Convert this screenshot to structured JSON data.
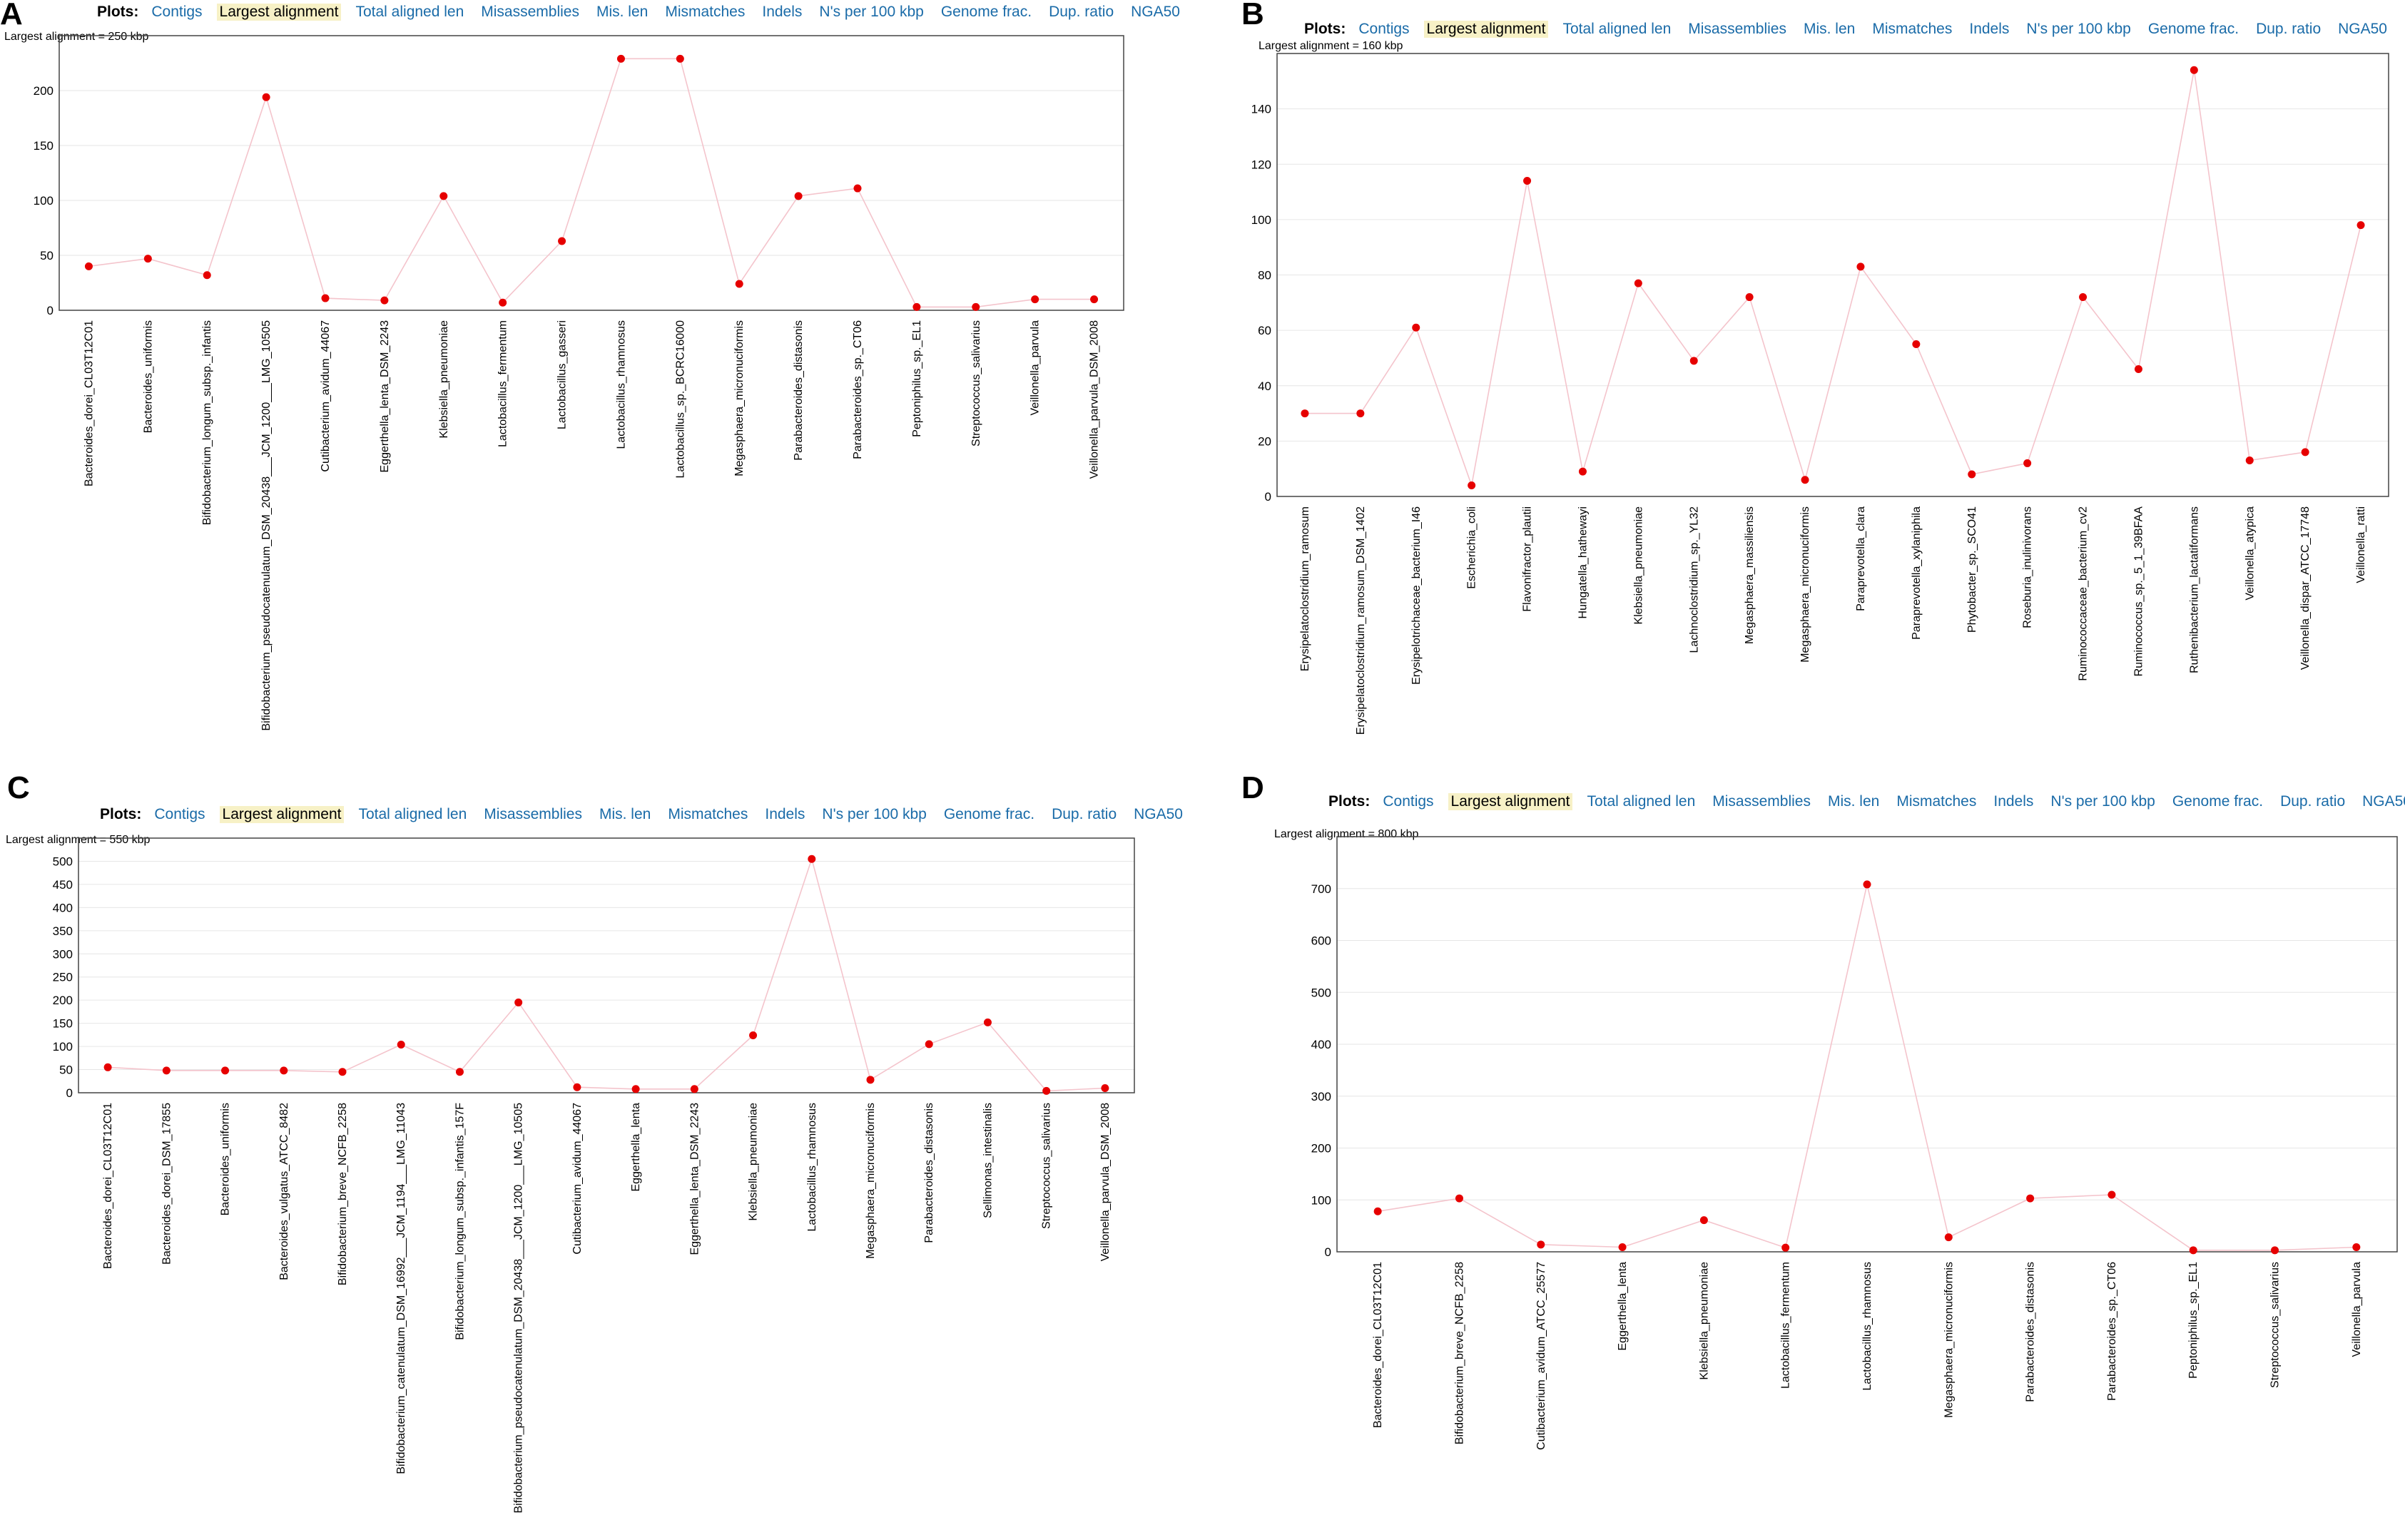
{
  "plots_label": "Plots:",
  "tabs": [
    "Contigs",
    "Largest alignment",
    "Total aligned len",
    "Misassemblies",
    "Mis. len",
    "Mismatches",
    "Indels",
    "N's per 100 kbp",
    "Genome frac.",
    "Dup. ratio",
    "NGA50"
  ],
  "active_tab": "Largest alignment",
  "colors": {
    "link": "#1a6ba8",
    "active_bg": "#f7f1c6",
    "point": "#e60000",
    "line": "#f4c4cc"
  },
  "chart_data": [
    {
      "id": "A",
      "type": "line",
      "max_label": "Largest alignment = 250 kbp",
      "ylim": [
        0,
        250
      ],
      "yticks": [
        0,
        50,
        100,
        150,
        200
      ],
      "categories": [
        "Bacteroides_dorei_CL03T12C01",
        "Bacteroides_uniformis",
        "Bifidobacterium_longum_subsp._infantis",
        "Bifidobacterium_pseudocatenulatum_DSM_20438___JCM_1200___LMG_10505",
        "Cutibacterium_avidum_44067",
        "Eggerthella_lenta_DSM_2243",
        "Klebsiella_pneumoniae",
        "Lactobacillus_fermentum",
        "Lactobacillus_gasseri",
        "Lactobacillus_rhamnosus",
        "Lactobacillus_sp._BCRC16000",
        "Megasphaera_micronuciformis",
        "Parabacteroides_distasonis",
        "Parabacteroides_sp._CT06",
        "Peptoniphilus_sp._EL1",
        "Streptococcus_salivarius",
        "Veillonella_parvula",
        "Veillonella_parvula_DSM_2008"
      ],
      "values": [
        40,
        47,
        32,
        194,
        11,
        9,
        104,
        7,
        63,
        229,
        229,
        24,
        104,
        111,
        3,
        3,
        10,
        10
      ]
    },
    {
      "id": "B",
      "type": "line",
      "max_label": "Largest alignment = 160 kbp",
      "ylim": [
        0,
        160
      ],
      "yticks": [
        0,
        20,
        40,
        60,
        80,
        100,
        120,
        140
      ],
      "categories": [
        "Erysipelatoclostridium_ramosum",
        "Erysipelatoclostridium_ramosum_DSM_1402",
        "Erysipelotrichaceae_bacterium_I46",
        "Escherichia_coli",
        "Flavonifractor_plautii",
        "Hungatella_hathewayi",
        "Klebsiella_pneumoniae",
        "Lachnoclostridium_sp._YL32",
        "Megasphaera_massiliensis",
        "Megasphaera_micronuciformis",
        "Paraprevotella_clara",
        "Paraprevotella_xylaniphila",
        "Phytobacter_sp._SCO41",
        "Roseburia_inulinivorans",
        "Ruminococcaceae_bacterium_cv2",
        "Ruminococcus_sp._5_1_39BFAA",
        "Ruthenibacterium_lactatiformans",
        "Veillonella_atypica",
        "Veillonella_dispar_ATCC_17748",
        "Veillonella_ratti"
      ],
      "values": [
        30,
        30,
        61,
        4,
        114,
        9,
        77,
        49,
        72,
        6,
        83,
        55,
        8,
        12,
        72,
        46,
        154,
        13,
        16,
        98
      ]
    },
    {
      "id": "C",
      "type": "line",
      "max_label": "Largest alignment = 550 kbp",
      "ylim": [
        0,
        550
      ],
      "yticks": [
        0,
        50,
        100,
        150,
        200,
        250,
        300,
        350,
        400,
        450,
        500
      ],
      "categories": [
        "Bacteroides_dorei_CL03T12C01",
        "Bacteroides_dorei_DSM_17855",
        "Bacteroides_uniformis",
        "Bacteroides_vulgatus_ATCC_8482",
        "Bifidobacterium_breve_NCFB_2258",
        "Bifidobacterium_catenulatum_DSM_16992___JCM_1194___LMG_11043",
        "Bifidobacterium_longum_subsp._infantis_157F",
        "Bifidobacterium_pseudocatenulatum_DSM_20438___JCM_1200___LMG_10505",
        "Cutibacterium_avidum_44067",
        "Eggerthella_lenta",
        "Eggerthella_lenta_DSM_2243",
        "Klebsiella_pneumoniae",
        "Lactobacillus_rhamnosus",
        "Megasphaera_micronuciformis",
        "Parabacteroides_distasonis",
        "Sellimonas_intestinalis",
        "Streptococcus_salivarius",
        "Veillonella_parvula_DSM_2008"
      ],
      "values": [
        55,
        48,
        48,
        48,
        45,
        104,
        45,
        195,
        12,
        8,
        8,
        124,
        505,
        28,
        105,
        152,
        4,
        10
      ]
    },
    {
      "id": "D",
      "type": "line",
      "max_label": "Largest alignment = 800 kbp",
      "ylim": [
        0,
        800
      ],
      "yticks": [
        0,
        100,
        200,
        300,
        400,
        500,
        600,
        700
      ],
      "categories": [
        "Bacteroides_dorei_CL03T12C01",
        "Bifidobacterium_breve_NCFB_2258",
        "Cutibacterium_avidum_ATCC_25577",
        "Eggerthella_lenta",
        "Klebsiella_pneumoniae",
        "Lactobacillus_fermentum",
        "Lactobacillus_rhamnosus",
        "Megasphaera_micronuciformis",
        "Parabacteroides_distasonis",
        "Parabacteroides_sp._CT06",
        "Peptoniphilus_sp._EL1",
        "Streptococcus_salivarius",
        "Veillonella_parvula"
      ],
      "values": [
        78,
        103,
        14,
        9,
        61,
        8,
        708,
        28,
        103,
        110,
        3,
        3,
        9
      ]
    }
  ]
}
